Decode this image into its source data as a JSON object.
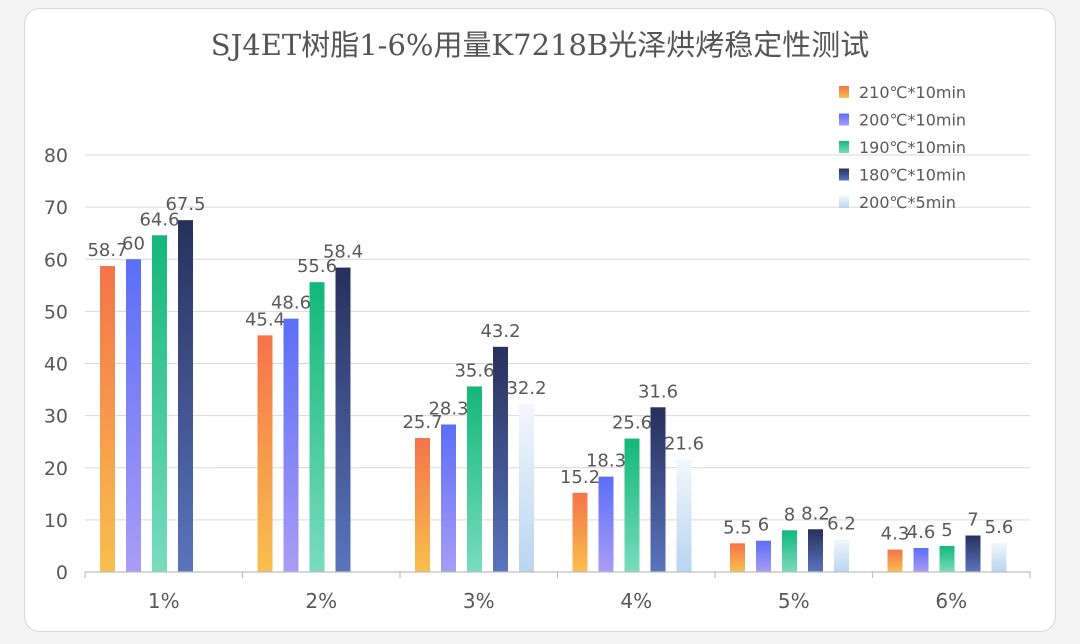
{
  "chart_data": {
    "type": "bar",
    "title": "SJ4ET树脂1-6%用量K7218B光泽烘烤稳定性测试",
    "xlabel": "",
    "ylabel": "",
    "ylim": [
      0,
      80
    ],
    "yticks": [
      0,
      10,
      20,
      30,
      40,
      50,
      60,
      70,
      80
    ],
    "grid": true,
    "legend_position": "top-right",
    "categories": [
      "1%",
      "2%",
      "3%",
      "4%",
      "5%",
      "6%"
    ],
    "series": [
      {
        "name": "210℃*10min",
        "color_top": "#f4744a",
        "color_bottom": "#f9bf4e",
        "values": [
          58.7,
          45.4,
          25.7,
          15.2,
          5.5,
          4.3
        ],
        "labels": [
          "58.7",
          "45.4",
          "25.7",
          "15.2",
          "5.5",
          "4.3"
        ]
      },
      {
        "name": "200℃*10min",
        "color_top": "#5b6ef7",
        "color_bottom": "#a99cf5",
        "values": [
          60,
          48.6,
          28.3,
          18.3,
          6,
          4.6
        ],
        "labels": [
          "60",
          "48.6",
          "28.3",
          "18.3",
          "6",
          "4.6"
        ]
      },
      {
        "name": "190℃*10min",
        "color_top": "#13b77c",
        "color_bottom": "#79dcbd",
        "values": [
          64.6,
          55.6,
          35.6,
          25.6,
          8,
          5
        ],
        "labels": [
          "64.6",
          "55.6",
          "35.6",
          "25.6",
          "8",
          "5"
        ]
      },
      {
        "name": "180℃*10min",
        "color_top": "#27305c",
        "color_bottom": "#5a74be",
        "values": [
          67.5,
          58.4,
          43.2,
          31.6,
          8.2,
          7
        ],
        "labels": [
          "67.5",
          "58.4",
          "43.2",
          "31.6",
          "8.2",
          "7"
        ]
      },
      {
        "name": "200℃*5min",
        "color_top": "#f2f7fc",
        "color_bottom": "#b9d5ef",
        "values": [
          null,
          null,
          32.2,
          21.6,
          6.2,
          5.6
        ],
        "labels": [
          "",
          "",
          "32.2",
          "21.6",
          "6.2",
          "5.6"
        ]
      }
    ]
  }
}
